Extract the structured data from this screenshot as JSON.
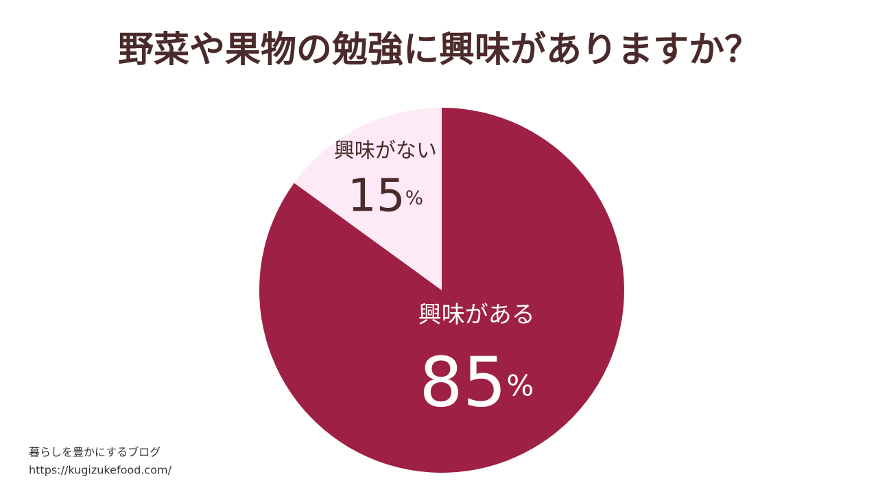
{
  "chart_data": {
    "type": "pie",
    "title": "野菜や果物の勉強に興味がありますか？",
    "categories": [
      "興味がある",
      "興味がない"
    ],
    "values": [
      85,
      15
    ],
    "value_labels": [
      "85%",
      "15%"
    ],
    "colors": [
      "#9e2044",
      "#fdeaf6"
    ],
    "label_colors": [
      "#ffffff",
      "#4a2a2a"
    ]
  },
  "footer": [
    "暮らしを豊かにするブログ",
    "https://kugizukefood.com/"
  ]
}
